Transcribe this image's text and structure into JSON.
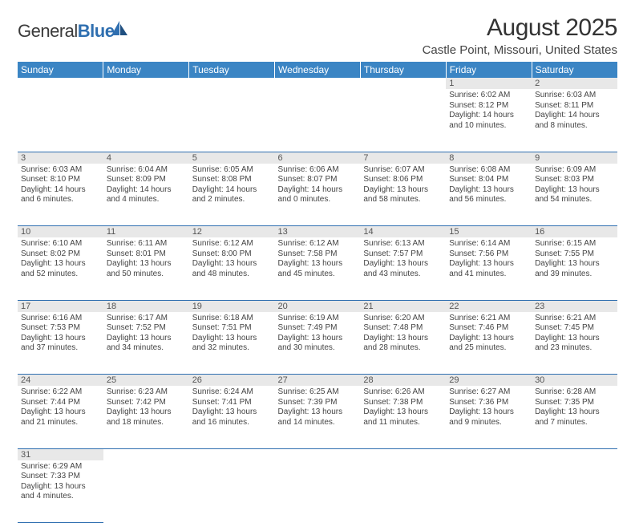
{
  "logo": {
    "text1": "General",
    "text2": "Blue"
  },
  "title": "August 2025",
  "location": "Castle Point, Missouri, United States",
  "headerColor": "#3b85c4",
  "dayHeaders": [
    "Sunday",
    "Monday",
    "Tuesday",
    "Wednesday",
    "Thursday",
    "Friday",
    "Saturday"
  ],
  "weeks": [
    {
      "days": [
        {
          "num": "",
          "sunrise": "",
          "sunset": "",
          "daylight": ""
        },
        {
          "num": "",
          "sunrise": "",
          "sunset": "",
          "daylight": ""
        },
        {
          "num": "",
          "sunrise": "",
          "sunset": "",
          "daylight": ""
        },
        {
          "num": "",
          "sunrise": "",
          "sunset": "",
          "daylight": ""
        },
        {
          "num": "",
          "sunrise": "",
          "sunset": "",
          "daylight": ""
        },
        {
          "num": "1",
          "sunrise": "Sunrise: 6:02 AM",
          "sunset": "Sunset: 8:12 PM",
          "daylight": "Daylight: 14 hours and 10 minutes."
        },
        {
          "num": "2",
          "sunrise": "Sunrise: 6:03 AM",
          "sunset": "Sunset: 8:11 PM",
          "daylight": "Daylight: 14 hours and 8 minutes."
        }
      ]
    },
    {
      "days": [
        {
          "num": "3",
          "sunrise": "Sunrise: 6:03 AM",
          "sunset": "Sunset: 8:10 PM",
          "daylight": "Daylight: 14 hours and 6 minutes."
        },
        {
          "num": "4",
          "sunrise": "Sunrise: 6:04 AM",
          "sunset": "Sunset: 8:09 PM",
          "daylight": "Daylight: 14 hours and 4 minutes."
        },
        {
          "num": "5",
          "sunrise": "Sunrise: 6:05 AM",
          "sunset": "Sunset: 8:08 PM",
          "daylight": "Daylight: 14 hours and 2 minutes."
        },
        {
          "num": "6",
          "sunrise": "Sunrise: 6:06 AM",
          "sunset": "Sunset: 8:07 PM",
          "daylight": "Daylight: 14 hours and 0 minutes."
        },
        {
          "num": "7",
          "sunrise": "Sunrise: 6:07 AM",
          "sunset": "Sunset: 8:06 PM",
          "daylight": "Daylight: 13 hours and 58 minutes."
        },
        {
          "num": "8",
          "sunrise": "Sunrise: 6:08 AM",
          "sunset": "Sunset: 8:04 PM",
          "daylight": "Daylight: 13 hours and 56 minutes."
        },
        {
          "num": "9",
          "sunrise": "Sunrise: 6:09 AM",
          "sunset": "Sunset: 8:03 PM",
          "daylight": "Daylight: 13 hours and 54 minutes."
        }
      ]
    },
    {
      "days": [
        {
          "num": "10",
          "sunrise": "Sunrise: 6:10 AM",
          "sunset": "Sunset: 8:02 PM",
          "daylight": "Daylight: 13 hours and 52 minutes."
        },
        {
          "num": "11",
          "sunrise": "Sunrise: 6:11 AM",
          "sunset": "Sunset: 8:01 PM",
          "daylight": "Daylight: 13 hours and 50 minutes."
        },
        {
          "num": "12",
          "sunrise": "Sunrise: 6:12 AM",
          "sunset": "Sunset: 8:00 PM",
          "daylight": "Daylight: 13 hours and 48 minutes."
        },
        {
          "num": "13",
          "sunrise": "Sunrise: 6:12 AM",
          "sunset": "Sunset: 7:58 PM",
          "daylight": "Daylight: 13 hours and 45 minutes."
        },
        {
          "num": "14",
          "sunrise": "Sunrise: 6:13 AM",
          "sunset": "Sunset: 7:57 PM",
          "daylight": "Daylight: 13 hours and 43 minutes."
        },
        {
          "num": "15",
          "sunrise": "Sunrise: 6:14 AM",
          "sunset": "Sunset: 7:56 PM",
          "daylight": "Daylight: 13 hours and 41 minutes."
        },
        {
          "num": "16",
          "sunrise": "Sunrise: 6:15 AM",
          "sunset": "Sunset: 7:55 PM",
          "daylight": "Daylight: 13 hours and 39 minutes."
        }
      ]
    },
    {
      "days": [
        {
          "num": "17",
          "sunrise": "Sunrise: 6:16 AM",
          "sunset": "Sunset: 7:53 PM",
          "daylight": "Daylight: 13 hours and 37 minutes."
        },
        {
          "num": "18",
          "sunrise": "Sunrise: 6:17 AM",
          "sunset": "Sunset: 7:52 PM",
          "daylight": "Daylight: 13 hours and 34 minutes."
        },
        {
          "num": "19",
          "sunrise": "Sunrise: 6:18 AM",
          "sunset": "Sunset: 7:51 PM",
          "daylight": "Daylight: 13 hours and 32 minutes."
        },
        {
          "num": "20",
          "sunrise": "Sunrise: 6:19 AM",
          "sunset": "Sunset: 7:49 PM",
          "daylight": "Daylight: 13 hours and 30 minutes."
        },
        {
          "num": "21",
          "sunrise": "Sunrise: 6:20 AM",
          "sunset": "Sunset: 7:48 PM",
          "daylight": "Daylight: 13 hours and 28 minutes."
        },
        {
          "num": "22",
          "sunrise": "Sunrise: 6:21 AM",
          "sunset": "Sunset: 7:46 PM",
          "daylight": "Daylight: 13 hours and 25 minutes."
        },
        {
          "num": "23",
          "sunrise": "Sunrise: 6:21 AM",
          "sunset": "Sunset: 7:45 PM",
          "daylight": "Daylight: 13 hours and 23 minutes."
        }
      ]
    },
    {
      "days": [
        {
          "num": "24",
          "sunrise": "Sunrise: 6:22 AM",
          "sunset": "Sunset: 7:44 PM",
          "daylight": "Daylight: 13 hours and 21 minutes."
        },
        {
          "num": "25",
          "sunrise": "Sunrise: 6:23 AM",
          "sunset": "Sunset: 7:42 PM",
          "daylight": "Daylight: 13 hours and 18 minutes."
        },
        {
          "num": "26",
          "sunrise": "Sunrise: 6:24 AM",
          "sunset": "Sunset: 7:41 PM",
          "daylight": "Daylight: 13 hours and 16 minutes."
        },
        {
          "num": "27",
          "sunrise": "Sunrise: 6:25 AM",
          "sunset": "Sunset: 7:39 PM",
          "daylight": "Daylight: 13 hours and 14 minutes."
        },
        {
          "num": "28",
          "sunrise": "Sunrise: 6:26 AM",
          "sunset": "Sunset: 7:38 PM",
          "daylight": "Daylight: 13 hours and 11 minutes."
        },
        {
          "num": "29",
          "sunrise": "Sunrise: 6:27 AM",
          "sunset": "Sunset: 7:36 PM",
          "daylight": "Daylight: 13 hours and 9 minutes."
        },
        {
          "num": "30",
          "sunrise": "Sunrise: 6:28 AM",
          "sunset": "Sunset: 7:35 PM",
          "daylight": "Daylight: 13 hours and 7 minutes."
        }
      ]
    },
    {
      "days": [
        {
          "num": "31",
          "sunrise": "Sunrise: 6:29 AM",
          "sunset": "Sunset: 7:33 PM",
          "daylight": "Daylight: 13 hours and 4 minutes."
        },
        {
          "num": "",
          "sunrise": "",
          "sunset": "",
          "daylight": ""
        },
        {
          "num": "",
          "sunrise": "",
          "sunset": "",
          "daylight": ""
        },
        {
          "num": "",
          "sunrise": "",
          "sunset": "",
          "daylight": ""
        },
        {
          "num": "",
          "sunrise": "",
          "sunset": "",
          "daylight": ""
        },
        {
          "num": "",
          "sunrise": "",
          "sunset": "",
          "daylight": ""
        },
        {
          "num": "",
          "sunrise": "",
          "sunset": "",
          "daylight": ""
        }
      ]
    }
  ]
}
